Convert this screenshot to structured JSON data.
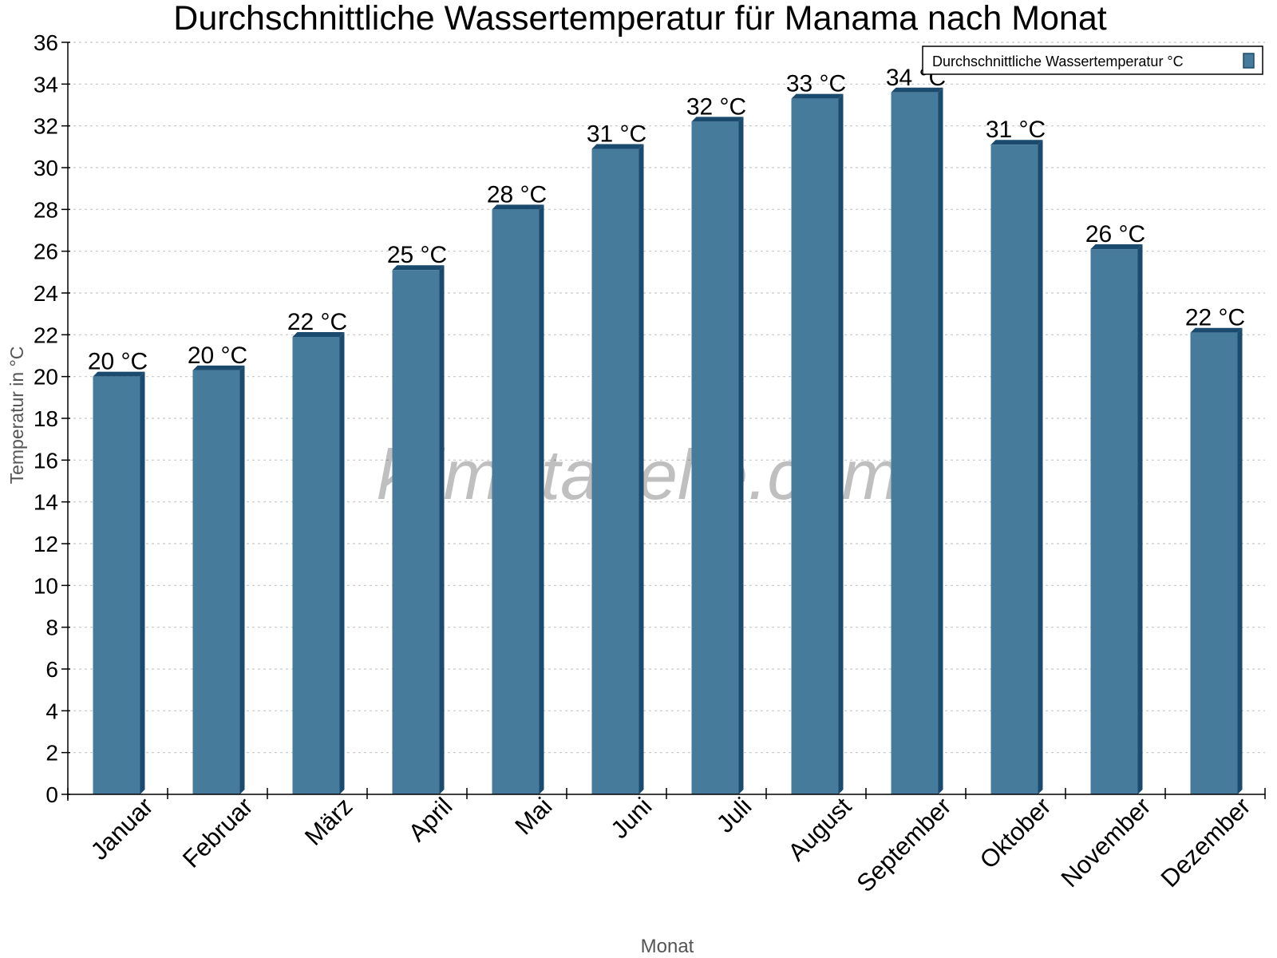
{
  "chart_data": {
    "type": "bar",
    "title": "Durchschnittliche Wassertemperatur für Manama nach Monat",
    "xlabel": "Monat",
    "ylabel": "Temperatur in °C",
    "categories": [
      "Januar",
      "Februar",
      "März",
      "April",
      "Mai",
      "Juni",
      "Juli",
      "August",
      "September",
      "Oktober",
      "November",
      "Dezember"
    ],
    "series": [
      {
        "name": "Durchschnittliche Wassertemperatur °C",
        "values": [
          20.0,
          20.3,
          21.9,
          25.1,
          28.0,
          30.9,
          32.2,
          33.3,
          33.6,
          31.1,
          26.1,
          22.1
        ],
        "labels": [
          "20 °C",
          "20 °C",
          "22 °C",
          "25 °C",
          "28 °C",
          "31 °C",
          "32 °C",
          "33 °C",
          "34 °C",
          "31 °C",
          "26 °C",
          "22 °C"
        ],
        "color": "#477b9c",
        "side_color": "#1a4b6e"
      }
    ],
    "ylim": [
      0,
      36
    ],
    "yticks": [
      "0",
      "2",
      "4",
      "6",
      "8",
      "10",
      "12",
      "14",
      "16",
      "18",
      "20",
      "22",
      "24",
      "26",
      "28",
      "30",
      "32",
      "34",
      "36"
    ],
    "grid": true,
    "legend_position": "top-right",
    "watermark": "klimatabelle.com"
  }
}
